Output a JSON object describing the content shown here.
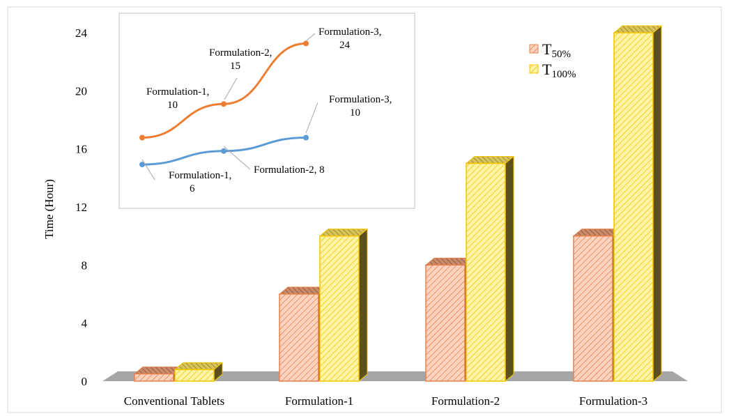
{
  "chart_data": [
    {
      "type": "bar",
      "style": "3d-clustered",
      "ylabel": "Time  (Hour)",
      "ylim": [
        0,
        24
      ],
      "yticks": [
        0,
        4,
        8,
        12,
        16,
        20,
        24
      ],
      "grid": false,
      "legend_position": "top-right",
      "categories": [
        "Conventional Tablets",
        "Formulation-1",
        "Formulation-2",
        "Formulation-3"
      ],
      "series": [
        {
          "name": "T",
          "subscript": "50%",
          "color": "#f4a582",
          "values": [
            0.5,
            6,
            8,
            10
          ]
        },
        {
          "name": "T",
          "subscript": "100%",
          "color": "#ffe14d",
          "values": [
            0.8,
            10,
            15,
            24
          ]
        }
      ]
    },
    {
      "type": "line",
      "position": "inset-top-left",
      "categories": [
        "Formulation-1",
        "Formulation-2",
        "Formulation-3"
      ],
      "series": [
        {
          "color": "#ed7d31",
          "values": [
            10,
            15,
            24
          ],
          "labels": [
            [
              "Formulation-1,",
              "10"
            ],
            [
              "Formulation-2,",
              "15"
            ],
            [
              "Formulation-3,",
              "24"
            ]
          ]
        },
        {
          "color": "#5b9bd5",
          "values": [
            6,
            8,
            10
          ],
          "labels": [
            [
              "Formulation-1,",
              "6"
            ],
            [
              "Formulation-2,  8"
            ],
            [
              "Formulation-3,",
              "10"
            ]
          ]
        }
      ]
    }
  ]
}
